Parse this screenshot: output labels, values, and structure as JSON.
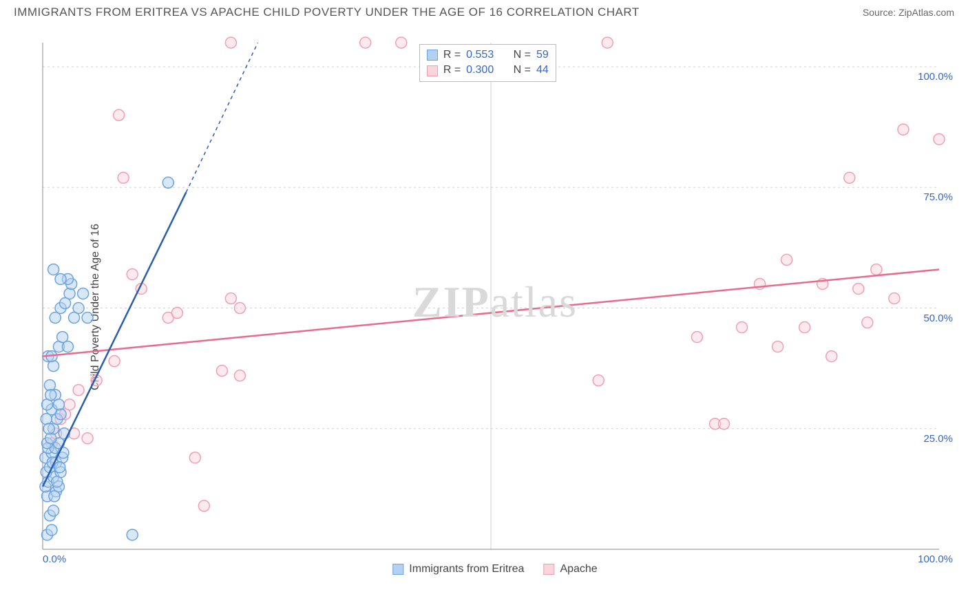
{
  "title": "IMMIGRANTS FROM ERITREA VS APACHE CHILD POVERTY UNDER THE AGE OF 16 CORRELATION CHART",
  "source": "Source: ZipAtlas.com",
  "ylabel": "Child Poverty Under the Age of 16",
  "watermark_bold": "ZIP",
  "watermark_rest": "atlas",
  "chart": {
    "type": "scatter",
    "xlim": [
      0,
      100
    ],
    "ylim": [
      0,
      105
    ],
    "x_ticks": [
      0,
      50,
      100
    ],
    "x_tick_labels": [
      "0.0%",
      "",
      "100.0%"
    ],
    "y_ticks": [
      25,
      50,
      75,
      100
    ],
    "y_tick_labels": [
      "25.0%",
      "50.0%",
      "75.0%",
      "100.0%"
    ],
    "grid_color": "#d0d0d0",
    "axis_color": "#888888",
    "background_color": "#ffffff",
    "marker_radius": 8,
    "marker_stroke_width": 1.5,
    "line_width": 2.5,
    "series": [
      {
        "name": "Immigrants from Eritrea",
        "color_fill": "#b3d1f0",
        "color_stroke": "#6ba3e0",
        "line_color": "#2a5db0",
        "r": 0.553,
        "n": 59,
        "trend": {
          "x1": 0,
          "y1": 13,
          "x2": 16,
          "y2": 74,
          "x2_dash": 24,
          "y2_dash": 105
        },
        "points": [
          [
            0.5,
            3
          ],
          [
            1,
            4
          ],
          [
            0.8,
            7
          ],
          [
            1.2,
            8
          ],
          [
            0.5,
            11
          ],
          [
            1.5,
            12
          ],
          [
            0.3,
            13
          ],
          [
            1.8,
            13
          ],
          [
            0.6,
            14
          ],
          [
            1.2,
            15
          ],
          [
            0.4,
            16
          ],
          [
            2,
            16
          ],
          [
            0.8,
            17
          ],
          [
            1.5,
            18
          ],
          [
            0.3,
            19
          ],
          [
            1,
            20
          ],
          [
            2.2,
            19
          ],
          [
            0.6,
            21
          ],
          [
            1.4,
            21
          ],
          [
            0.5,
            22
          ],
          [
            1.8,
            22
          ],
          [
            0.9,
            23
          ],
          [
            1.2,
            25
          ],
          [
            0.4,
            27
          ],
          [
            1.6,
            27
          ],
          [
            2,
            28
          ],
          [
            1,
            29
          ],
          [
            0.5,
            30
          ],
          [
            1.4,
            32
          ],
          [
            0.8,
            34
          ],
          [
            1.2,
            38
          ],
          [
            0.6,
            40
          ],
          [
            1,
            40
          ],
          [
            1.8,
            42
          ],
          [
            2.2,
            44
          ],
          [
            1.4,
            48
          ],
          [
            2,
            50
          ],
          [
            2.5,
            51
          ],
          [
            3,
            53
          ],
          [
            3.2,
            55
          ],
          [
            2.8,
            56
          ],
          [
            2,
            56
          ],
          [
            1.2,
            58
          ],
          [
            4,
            50
          ],
          [
            4.5,
            53
          ],
          [
            5,
            48
          ],
          [
            10,
            3
          ],
          [
            14,
            76
          ],
          [
            1.8,
            30
          ],
          [
            0.9,
            32
          ],
          [
            2.8,
            42
          ],
          [
            3.5,
            48
          ],
          [
            2.3,
            20
          ],
          [
            1.6,
            14
          ],
          [
            0.7,
            25
          ],
          [
            1.1,
            18
          ],
          [
            2.4,
            24
          ],
          [
            1.9,
            17
          ],
          [
            1.3,
            11
          ]
        ]
      },
      {
        "name": "Apache",
        "color_fill": "#fbd5de",
        "color_stroke": "#f09fb4",
        "line_color": "#e86a8c",
        "r": 0.3,
        "n": 44,
        "trend": {
          "x1": 0,
          "y1": 40,
          "x2": 100,
          "y2": 58
        },
        "points": [
          [
            1,
            22
          ],
          [
            1.5,
            24
          ],
          [
            2,
            27
          ],
          [
            2.5,
            28
          ],
          [
            3,
            30
          ],
          [
            4,
            33
          ],
          [
            3.5,
            24
          ],
          [
            5,
            23
          ],
          [
            6,
            35
          ],
          [
            8,
            39
          ],
          [
            10,
            57
          ],
          [
            11,
            54
          ],
          [
            8.5,
            90
          ],
          [
            9,
            77
          ],
          [
            14,
            48
          ],
          [
            15,
            49
          ],
          [
            17,
            19
          ],
          [
            18,
            9
          ],
          [
            20,
            37
          ],
          [
            21,
            52
          ],
          [
            22,
            50
          ],
          [
            21,
            105
          ],
          [
            22,
            36
          ],
          [
            36,
            105
          ],
          [
            40,
            105
          ],
          [
            62,
            35
          ],
          [
            63,
            105
          ],
          [
            75,
            26
          ],
          [
            76,
            26
          ],
          [
            78,
            46
          ],
          [
            82,
            42
          ],
          [
            83,
            60
          ],
          [
            85,
            46
          ],
          [
            87,
            55
          ],
          [
            88,
            40
          ],
          [
            90,
            77
          ],
          [
            91,
            54
          ],
          [
            92,
            47
          ],
          [
            93,
            58
          ],
          [
            95,
            52
          ],
          [
            96,
            87
          ],
          [
            100,
            85
          ],
          [
            73,
            44
          ],
          [
            80,
            55
          ]
        ]
      }
    ]
  },
  "legend_top": {
    "r_label": "R",
    "n_label": "N",
    "eq": "="
  },
  "legend_bottom_labels": [
    "Immigrants from Eritrea",
    "Apache"
  ]
}
